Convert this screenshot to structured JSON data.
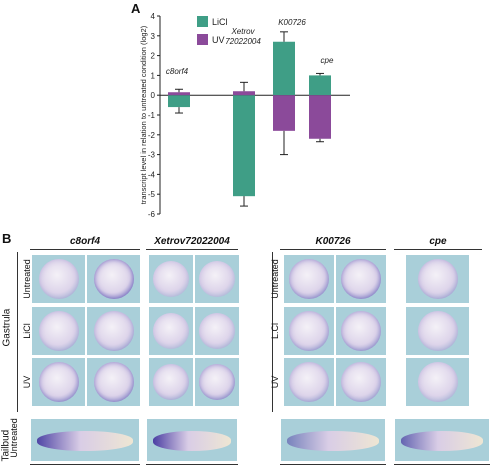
{
  "panel_a": {
    "letter": "A"
  },
  "panel_b": {
    "letter": "B"
  },
  "chart_data": {
    "type": "bar",
    "categories": [
      "c8orf4",
      "Xetrov72022004",
      "K00726",
      "cpe"
    ],
    "category_labels": [
      {
        "gene": "c8orf4",
        "line1": "c8orf4",
        "line2": ""
      },
      {
        "gene": "Xetrov72022004",
        "line1": "Xetrov",
        "line2": "72022004"
      },
      {
        "gene": "K00726",
        "line1": "K00726",
        "line2": ""
      },
      {
        "gene": "cpe",
        "line1": "cpe",
        "line2": ""
      }
    ],
    "series": [
      {
        "name": "LiCl",
        "color": "#3f9e86",
        "values": [
          -0.6,
          -5.1,
          2.7,
          1.0
        ],
        "errors": [
          0.3,
          0.5,
          0.5,
          0.1
        ]
      },
      {
        "name": "UV",
        "color": "#8b4a9a",
        "values": [
          0.15,
          0.2,
          -1.8,
          -2.2
        ],
        "errors": [
          0.15,
          0.45,
          1.2,
          0.15
        ]
      }
    ],
    "ylabel": "transcript level in relation to untreated condition (log2)",
    "ylim": [
      -6,
      4
    ],
    "yticks": [
      -6,
      -5,
      -4,
      -3,
      -2,
      -1,
      0,
      1,
      2,
      3,
      4
    ],
    "legend": "top-left",
    "grid": false
  },
  "genes": [
    {
      "name": "c8orf4"
    },
    {
      "name": "Xetrov72022004"
    },
    {
      "name": "K00726"
    },
    {
      "name": "cpe"
    }
  ],
  "rows": {
    "group_gastrula": "Gastrula",
    "group_tailbud": "Tailbud",
    "untreated": "Untreated",
    "licl": "LiCl",
    "uv": "UV",
    "licl_right": "L.Cl",
    "tailbud_untreated": "Untreated"
  },
  "colors": {
    "background_tile": "#a9cfd9",
    "stain": "#5a4fb3"
  }
}
